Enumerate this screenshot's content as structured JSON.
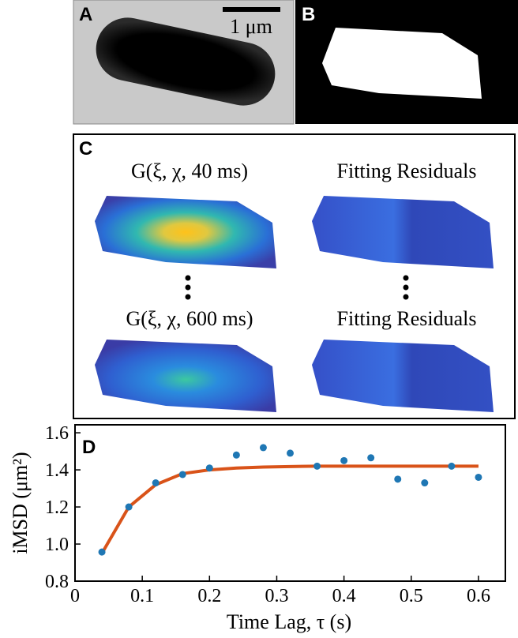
{
  "panels": {
    "a": {
      "label": "A",
      "scale_bar": "1 μm"
    },
    "b": {
      "label": "B"
    },
    "c": {
      "label": "C",
      "titles": [
        "G(ξ, χ, 40 ms)",
        "Fitting Residuals",
        "G(ξ, χ, 600 ms)",
        "Fitting Residuals"
      ]
    }
  },
  "chart_data": {
    "type": "scatter",
    "panel_label": "D",
    "xlabel": "Time Lag, τ (s)",
    "ylabel": "iMSD (μm²)",
    "x": [
      0.04,
      0.08,
      0.12,
      0.16,
      0.2,
      0.24,
      0.28,
      0.32,
      0.36,
      0.4,
      0.44,
      0.48,
      0.52,
      0.56,
      0.6
    ],
    "series": [
      {
        "color": "#d95319",
        "marker": "line",
        "values": [
          0.95,
          1.2,
          1.32,
          1.38,
          1.4,
          1.41,
          1.415,
          1.418,
          1.42,
          1.42,
          1.42,
          1.42,
          1.42,
          1.42,
          1.42
        ]
      },
      {
        "color": "#1f77b4",
        "marker": "dot",
        "values": [
          0.957,
          1.2,
          1.33,
          1.375,
          1.41,
          1.48,
          1.52,
          1.49,
          1.42,
          1.45,
          1.465,
          1.35,
          1.33,
          1.42,
          1.36
        ]
      }
    ],
    "xlim": [
      0,
      0.64
    ],
    "xticks": [
      0,
      0.1,
      0.2,
      0.3,
      0.4,
      0.5,
      0.6
    ],
    "ylim": [
      0.8,
      1.643
    ],
    "yticks": [
      0.8,
      {
        "value": 1,
        "label": "1.0"
      },
      1.2,
      1.4,
      1.6
    ]
  }
}
